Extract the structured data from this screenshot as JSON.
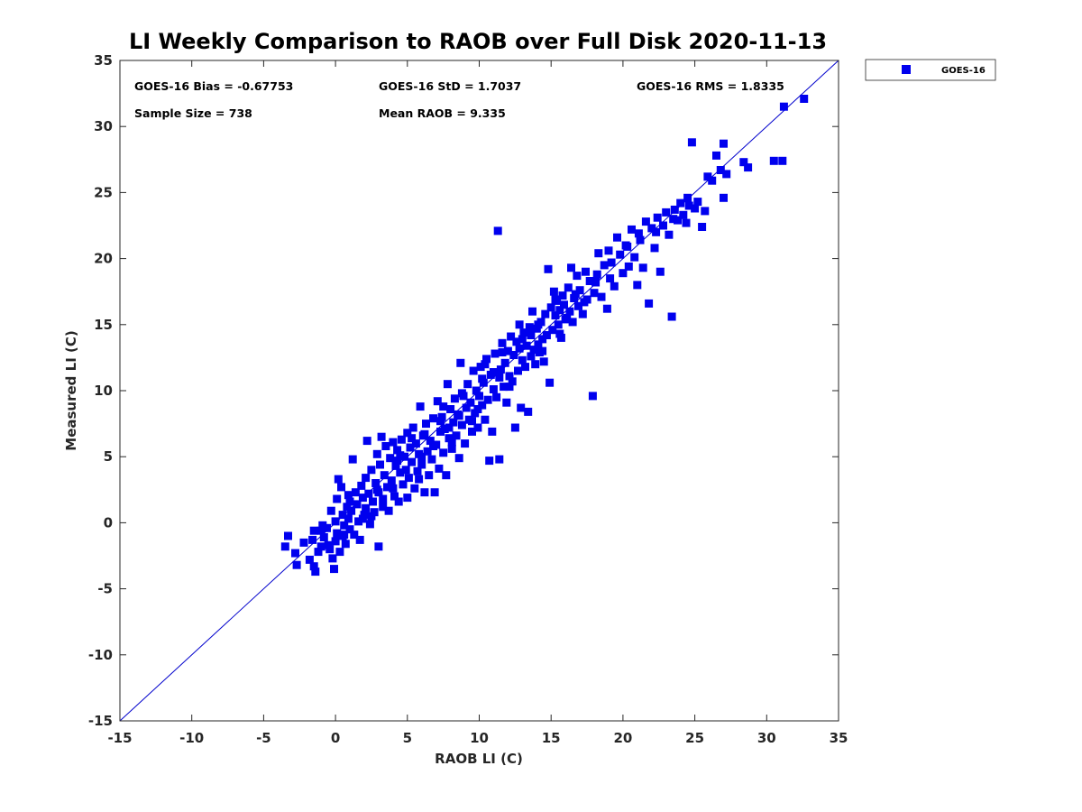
{
  "chart_data": {
    "type": "scatter",
    "title": "LI Weekly Comparison to RAOB over Full Disk 2020-11-13",
    "xlabel": "RAOB LI (C)",
    "ylabel": "Measured LI (C)",
    "xlim": [
      -15,
      35
    ],
    "ylim": [
      -15,
      35
    ],
    "xticks": [
      "-15",
      "-10",
      "-5",
      "0",
      "5",
      "10",
      "15",
      "20",
      "25",
      "30",
      "35"
    ],
    "yticks": [
      "-15",
      "-10",
      "-5",
      "0",
      "5",
      "10",
      "15",
      "20",
      "25",
      "30",
      "35"
    ],
    "grid": false,
    "legend_position": "outside-top-right",
    "stats": {
      "bias": "GOES-16 Bias = -0.67753",
      "std": "GOES-16 StD = 1.7037",
      "rms": "GOES-16 RMS = 1.8335",
      "sample": "Sample Size = 738",
      "mean": "Mean RAOB = 9.335"
    },
    "reference_line": {
      "name": "1:1",
      "from": [
        -15,
        -15
      ],
      "to": [
        35,
        35
      ],
      "color": "#0000cc"
    },
    "series": [
      {
        "name": "GOES-16",
        "color": "#0000ee",
        "marker": "square",
        "points": [
          [
            -3.5,
            -1.8
          ],
          [
            -3.3,
            -1.0
          ],
          [
            -2.8,
            -2.3
          ],
          [
            -2.7,
            -3.2
          ],
          [
            -2.2,
            -1.5
          ],
          [
            -1.8,
            -2.8
          ],
          [
            -1.6,
            -1.3
          ],
          [
            -1.5,
            -3.3
          ],
          [
            -1.5,
            -0.6
          ],
          [
            -1.4,
            -3.7
          ],
          [
            -1.2,
            -2.2
          ],
          [
            -1.0,
            -1.8
          ],
          [
            -0.9,
            -0.2
          ],
          [
            -0.8,
            -1.1
          ],
          [
            -0.6,
            -0.4
          ],
          [
            -0.4,
            -2.0
          ],
          [
            -0.3,
            0.9
          ],
          [
            -0.2,
            -2.7
          ],
          [
            -0.1,
            -3.5
          ],
          [
            0.0,
            -1.4
          ],
          [
            0.0,
            0.1
          ],
          [
            0.1,
            1.8
          ],
          [
            0.1,
            -0.8
          ],
          [
            0.2,
            3.3
          ],
          [
            0.3,
            -2.2
          ],
          [
            0.4,
            2.7
          ],
          [
            0.5,
            -1.0
          ],
          [
            0.5,
            0.6
          ],
          [
            0.6,
            -0.2
          ],
          [
            0.7,
            -1.6
          ],
          [
            0.8,
            1.2
          ],
          [
            0.9,
            0.3
          ],
          [
            1.0,
            -0.5
          ],
          [
            1.0,
            1.6
          ],
          [
            1.1,
            0.9
          ],
          [
            1.2,
            4.8
          ],
          [
            1.3,
            -0.9
          ],
          [
            1.4,
            2.3
          ],
          [
            1.5,
            1.4
          ],
          [
            1.6,
            0.1
          ],
          [
            1.7,
            -1.3
          ],
          [
            1.8,
            2.8
          ],
          [
            1.9,
            1.9
          ],
          [
            2.0,
            0.6
          ],
          [
            2.1,
            3.4
          ],
          [
            2.1,
            1.1
          ],
          [
            2.2,
            6.2
          ],
          [
            2.3,
            2.2
          ],
          [
            2.4,
            -0.1
          ],
          [
            2.5,
            4.0
          ],
          [
            2.6,
            1.6
          ],
          [
            2.7,
            0.8
          ],
          [
            2.8,
            3.0
          ],
          [
            2.9,
            5.2
          ],
          [
            3.0,
            2.3
          ],
          [
            3.0,
            -1.8
          ],
          [
            3.1,
            4.4
          ],
          [
            3.2,
            6.5
          ],
          [
            3.3,
            1.2
          ],
          [
            3.4,
            3.6
          ],
          [
            3.5,
            5.8
          ],
          [
            3.6,
            2.7
          ],
          [
            3.7,
            0.9
          ],
          [
            3.8,
            4.9
          ],
          [
            3.9,
            3.2
          ],
          [
            4.0,
            6.1
          ],
          [
            4.1,
            2.0
          ],
          [
            4.2,
            4.3
          ],
          [
            4.3,
            5.5
          ],
          [
            4.4,
            1.6
          ],
          [
            4.5,
            3.8
          ],
          [
            4.6,
            6.3
          ],
          [
            4.7,
            2.9
          ],
          [
            4.8,
            5.0
          ],
          [
            4.9,
            4.0
          ],
          [
            5.0,
            6.8
          ],
          [
            5.0,
            1.9
          ],
          [
            5.1,
            3.4
          ],
          [
            5.2,
            5.7
          ],
          [
            5.3,
            4.6
          ],
          [
            5.4,
            7.2
          ],
          [
            5.5,
            2.6
          ],
          [
            5.6,
            6.0
          ],
          [
            5.7,
            3.9
          ],
          [
            5.8,
            5.2
          ],
          [
            5.9,
            8.8
          ],
          [
            6.0,
            4.4
          ],
          [
            6.1,
            6.6
          ],
          [
            6.2,
            2.3
          ],
          [
            6.3,
            7.5
          ],
          [
            6.4,
            5.4
          ],
          [
            6.5,
            3.6
          ],
          [
            6.6,
            6.2
          ],
          [
            6.7,
            4.8
          ],
          [
            6.8,
            7.9
          ],
          [
            6.9,
            2.3
          ],
          [
            7.0,
            5.9
          ],
          [
            7.1,
            9.2
          ],
          [
            7.2,
            4.1
          ],
          [
            7.3,
            6.9
          ],
          [
            7.4,
            8.0
          ],
          [
            7.5,
            5.3
          ],
          [
            7.6,
            7.1
          ],
          [
            7.7,
            3.6
          ],
          [
            7.8,
            10.5
          ],
          [
            7.9,
            6.4
          ],
          [
            8.0,
            8.6
          ],
          [
            8.1,
            5.6
          ],
          [
            8.2,
            7.6
          ],
          [
            8.3,
            9.4
          ],
          [
            8.4,
            6.6
          ],
          [
            8.5,
            8.2
          ],
          [
            8.6,
            4.9
          ],
          [
            8.7,
            12.1
          ],
          [
            8.8,
            7.4
          ],
          [
            8.9,
            9.6
          ],
          [
            9.0,
            6.0
          ],
          [
            9.1,
            8.7
          ],
          [
            9.2,
            10.5
          ],
          [
            9.3,
            7.8
          ],
          [
            9.4,
            9.1
          ],
          [
            9.5,
            6.9
          ],
          [
            9.6,
            11.5
          ],
          [
            9.7,
            8.3
          ],
          [
            9.8,
            10.0
          ],
          [
            9.9,
            7.2
          ],
          [
            10.0,
            9.6
          ],
          [
            10.1,
            11.8
          ],
          [
            10.2,
            8.9
          ],
          [
            10.3,
            10.6
          ],
          [
            10.4,
            7.8
          ],
          [
            10.5,
            12.4
          ],
          [
            10.6,
            9.3
          ],
          [
            10.7,
            4.7
          ],
          [
            10.8,
            11.2
          ],
          [
            10.9,
            6.9
          ],
          [
            11.0,
            10.1
          ],
          [
            11.1,
            12.8
          ],
          [
            11.2,
            9.5
          ],
          [
            11.3,
            22.1
          ],
          [
            11.4,
            4.8
          ],
          [
            11.5,
            11.6
          ],
          [
            11.6,
            13.6
          ],
          [
            11.7,
            10.3
          ],
          [
            11.8,
            12.1
          ],
          [
            11.9,
            9.1
          ],
          [
            12.0,
            13.0
          ],
          [
            12.1,
            11.1
          ],
          [
            12.2,
            14.1
          ],
          [
            12.3,
            10.7
          ],
          [
            12.4,
            12.7
          ],
          [
            12.5,
            7.2
          ],
          [
            12.6,
            13.7
          ],
          [
            12.7,
            11.5
          ],
          [
            12.8,
            15.0
          ],
          [
            12.9,
            8.7
          ],
          [
            13.0,
            12.3
          ],
          [
            13.1,
            14.4
          ],
          [
            13.2,
            11.8
          ],
          [
            13.3,
            13.4
          ],
          [
            13.4,
            8.4
          ],
          [
            13.5,
            14.8
          ],
          [
            13.6,
            12.6
          ],
          [
            13.7,
            16.0
          ],
          [
            13.8,
            13.1
          ],
          [
            13.9,
            12.0
          ],
          [
            14.0,
            14.7
          ],
          [
            14.1,
            13.5
          ],
          [
            14.2,
            12.9
          ],
          [
            14.3,
            15.2
          ],
          [
            14.4,
            13.9
          ],
          [
            14.5,
            12.2
          ],
          [
            14.6,
            15.8
          ],
          [
            14.7,
            14.2
          ],
          [
            14.8,
            19.2
          ],
          [
            14.9,
            10.6
          ],
          [
            15.0,
            16.3
          ],
          [
            15.1,
            14.6
          ],
          [
            15.2,
            17.5
          ],
          [
            15.3,
            15.7
          ],
          [
            15.4,
            16.8
          ],
          [
            15.5,
            15.0
          ],
          [
            15.6,
            16.1
          ],
          [
            15.7,
            14.0
          ],
          [
            15.8,
            17.2
          ],
          [
            15.9,
            16.5
          ],
          [
            16.0,
            15.4
          ],
          [
            16.2,
            17.8
          ],
          [
            16.3,
            16.0
          ],
          [
            16.4,
            19.3
          ],
          [
            16.5,
            15.2
          ],
          [
            16.6,
            17.0
          ],
          [
            16.8,
            18.7
          ],
          [
            16.9,
            16.4
          ],
          [
            17.0,
            17.6
          ],
          [
            17.2,
            15.8
          ],
          [
            17.4,
            19.0
          ],
          [
            17.5,
            16.9
          ],
          [
            17.7,
            18.3
          ],
          [
            17.9,
            9.6
          ],
          [
            18.0,
            17.4
          ],
          [
            18.2,
            18.8
          ],
          [
            18.3,
            20.4
          ],
          [
            18.5,
            17.1
          ],
          [
            18.7,
            19.5
          ],
          [
            18.9,
            16.2
          ],
          [
            19.0,
            20.6
          ],
          [
            19.2,
            19.7
          ],
          [
            19.4,
            17.9
          ],
          [
            19.6,
            21.6
          ],
          [
            19.8,
            20.3
          ],
          [
            20.0,
            18.9
          ],
          [
            20.2,
            21.0
          ],
          [
            20.4,
            19.4
          ],
          [
            20.6,
            22.2
          ],
          [
            20.8,
            20.1
          ],
          [
            21.0,
            18.0
          ],
          [
            21.2,
            21.4
          ],
          [
            21.4,
            19.3
          ],
          [
            21.6,
            22.8
          ],
          [
            21.8,
            16.6
          ],
          [
            22.0,
            22.3
          ],
          [
            22.2,
            20.8
          ],
          [
            22.4,
            23.1
          ],
          [
            22.6,
            19.0
          ],
          [
            22.8,
            22.5
          ],
          [
            23.0,
            23.5
          ],
          [
            23.2,
            21.8
          ],
          [
            23.4,
            15.6
          ],
          [
            23.6,
            23.7
          ],
          [
            23.8,
            22.9
          ],
          [
            24.0,
            24.2
          ],
          [
            24.2,
            23.3
          ],
          [
            24.4,
            22.7
          ],
          [
            24.6,
            24.0
          ],
          [
            24.8,
            28.8
          ],
          [
            25.0,
            23.8
          ],
          [
            25.2,
            24.3
          ],
          [
            25.5,
            22.4
          ],
          [
            25.7,
            23.6
          ],
          [
            25.9,
            26.2
          ],
          [
            26.2,
            25.9
          ],
          [
            26.5,
            27.8
          ],
          [
            26.8,
            26.7
          ],
          [
            27.0,
            28.7
          ],
          [
            27.2,
            26.4
          ],
          [
            27.0,
            24.6
          ],
          [
            28.4,
            27.3
          ],
          [
            28.7,
            26.9
          ],
          [
            30.5,
            27.4
          ],
          [
            31.1,
            27.4
          ],
          [
            31.2,
            31.5
          ],
          [
            32.6,
            32.1
          ],
          [
            -1.0,
            -0.6
          ],
          [
            0.6,
            -0.9
          ],
          [
            2.5,
            0.5
          ],
          [
            4.0,
            2.6
          ],
          [
            5.8,
            3.3
          ],
          [
            6.2,
            6.7
          ],
          [
            7.5,
            8.8
          ],
          [
            8.1,
            6.1
          ],
          [
            9.5,
            7.7
          ],
          [
            10.4,
            12.0
          ],
          [
            11.6,
            12.9
          ],
          [
            12.8,
            13.2
          ],
          [
            13.6,
            14.2
          ],
          [
            14.4,
            13.0
          ],
          [
            15.3,
            16.9
          ],
          [
            16.1,
            15.5
          ],
          [
            17.3,
            16.7
          ],
          [
            -0.5,
            -1.7
          ],
          [
            0.9,
            2.1
          ],
          [
            1.9,
            0.3
          ],
          [
            3.3,
            1.8
          ],
          [
            4.5,
            5.1
          ],
          [
            5.3,
            6.4
          ],
          [
            6.8,
            5.8
          ],
          [
            7.9,
            7.2
          ],
          [
            8.8,
            9.8
          ],
          [
            9.9,
            8.6
          ],
          [
            11.0,
            11.4
          ],
          [
            12.1,
            10.3
          ],
          [
            13.0,
            13.9
          ],
          [
            14.1,
            15.0
          ],
          [
            15.6,
            14.3
          ],
          [
            16.7,
            17.3
          ],
          [
            18.1,
            18.2
          ],
          [
            19.1,
            18.5
          ],
          [
            20.3,
            20.9
          ],
          [
            21.1,
            21.9
          ],
          [
            22.3,
            22.0
          ],
          [
            23.5,
            23.0
          ],
          [
            24.5,
            24.6
          ],
          [
            2.9,
            2.5
          ],
          [
            4.3,
            4.7
          ],
          [
            6.0,
            5.0
          ],
          [
            7.3,
            7.7
          ],
          [
            8.6,
            8.1
          ],
          [
            10.2,
            10.9
          ],
          [
            11.4,
            11.0
          ]
        ]
      }
    ]
  }
}
